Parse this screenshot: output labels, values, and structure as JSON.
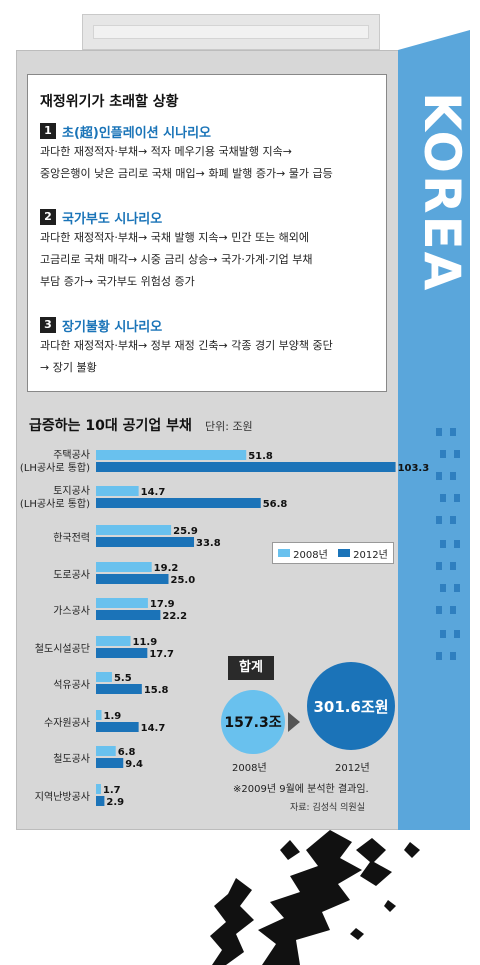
{
  "decor": {
    "side_text": "KOREA"
  },
  "scenarios": {
    "title": "재정위기가 초래할 상황",
    "items": [
      {
        "num": "1",
        "title": "초(超)인플레이션 시나리오",
        "lines": [
          "과다한 재정적자·부채→ 적자 메우기용 국채발행 지속→",
          "중앙은행이 낮은 금리로 국채 매입→ 화폐 발행 증가→ 물가 급등"
        ]
      },
      {
        "num": "2",
        "title": "국가부도 시나리오",
        "lines": [
          "과다한 재정적자·부채→ 국채 발행 지속→ 민간 또는 해외에",
          "고금리로 국채 매각→ 시중 금리 상승→ 국가·가계·기업 부채",
          "부담 증가→ 국가부도 위험성 증가"
        ]
      },
      {
        "num": "3",
        "title": "장기불황 시나리오",
        "lines": [
          "과다한 재정적자·부채→ 정부 재정 긴축→ 각종 경기 부양책 중단",
          "→ 장기 불황"
        ]
      }
    ]
  },
  "chart_data": {
    "type": "bar",
    "orientation": "horizontal",
    "title": "급증하는 10대 공기업 부채",
    "unit": "단위: 조원",
    "categories": [
      [
        "주택공사",
        "(LH공사로 통합)"
      ],
      [
        "토지공사",
        "(LH공사로 통합)"
      ],
      [
        "한국전력"
      ],
      [
        "도로공사"
      ],
      [
        "가스공사"
      ],
      [
        "철도시설공단"
      ],
      [
        "석유공사"
      ],
      [
        "수자원공사"
      ],
      [
        "철도공사"
      ],
      [
        "지역난방공사"
      ]
    ],
    "series": [
      {
        "name": "2008년",
        "color": "#69c1ee",
        "values": [
          51.8,
          14.7,
          25.9,
          19.2,
          17.9,
          11.9,
          5.5,
          1.9,
          6.8,
          1.7
        ]
      },
      {
        "name": "2012년",
        "color": "#1b73b8",
        "values": [
          103.3,
          56.8,
          33.8,
          25.0,
          22.2,
          17.7,
          15.8,
          14.7,
          9.4,
          2.9
        ]
      }
    ],
    "value_labels": [
      [
        "51.8",
        "103.3"
      ],
      [
        "14.7",
        "56.8"
      ],
      [
        "25.9",
        "33.8"
      ],
      [
        "19.2",
        "25.0"
      ],
      [
        "17.9",
        "22.2"
      ],
      [
        "11.9",
        "17.7"
      ],
      [
        "5.5",
        "15.8"
      ],
      [
        "1.9",
        "14.7"
      ],
      [
        "6.8",
        "9.4"
      ],
      [
        "1.7",
        "2.9"
      ]
    ],
    "legend_placement": "right",
    "grid": false
  },
  "totals": {
    "label": "합계",
    "value_2008": "157.3조",
    "value_2012": "301.6조원",
    "year_2008": "2008년",
    "year_2012": "2012년"
  },
  "note": "※2009년 9월에 분석한 결과임.",
  "source": "자료: 김성식 의원실"
}
